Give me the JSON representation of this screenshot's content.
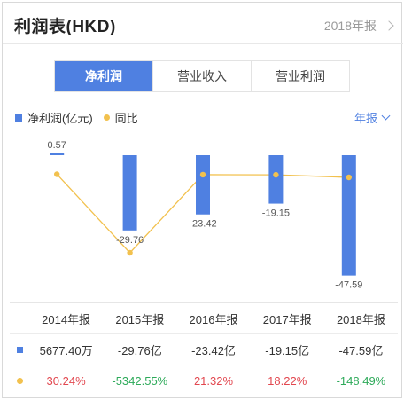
{
  "header": {
    "title": "利润表(HKD)",
    "period": "2018年报"
  },
  "tabs": [
    {
      "label": "净利润",
      "active": true
    },
    {
      "label": "营业收入",
      "active": false
    },
    {
      "label": "营业利润",
      "active": false
    }
  ],
  "legend": {
    "bar_label": "净利润(亿元)",
    "line_label": "同比",
    "report_type": "年报"
  },
  "chart_data": {
    "type": "bar",
    "categories": [
      "2014年报",
      "2015年报",
      "2016年报",
      "2017年报",
      "2018年报"
    ],
    "series": [
      {
        "name": "净利润(亿元)",
        "type": "bar",
        "values": [
          0.57,
          -29.76,
          -23.42,
          -19.15,
          -47.59
        ],
        "labels": [
          "0.57",
          "-29.76",
          "-23.42",
          "-19.15",
          "-47.59"
        ],
        "color": "#4f80e1"
      },
      {
        "name": "同比",
        "type": "line",
        "values": [
          30.24,
          -5342.55,
          21.32,
          18.22,
          -148.49
        ],
        "color": "#f2c14e"
      }
    ],
    "ylim": [
      -50,
      5
    ],
    "grid": false
  },
  "table": {
    "headers": [
      "2014年报",
      "2015年报",
      "2016年报",
      "2017年报",
      "2018年报"
    ],
    "profit": [
      "5677.40万",
      "-29.76亿",
      "-23.42亿",
      "-19.15亿",
      "-47.59亿"
    ],
    "yoy": [
      "30.24%",
      "-5342.55%",
      "21.32%",
      "18.22%",
      "-148.49%"
    ],
    "yoy_sign": [
      "pos",
      "neg",
      "pos",
      "pos",
      "neg"
    ]
  },
  "colors": {
    "accent": "#4f80e1",
    "line": "#f2c14e",
    "up": "#e2474f",
    "down": "#2eaa5a"
  }
}
